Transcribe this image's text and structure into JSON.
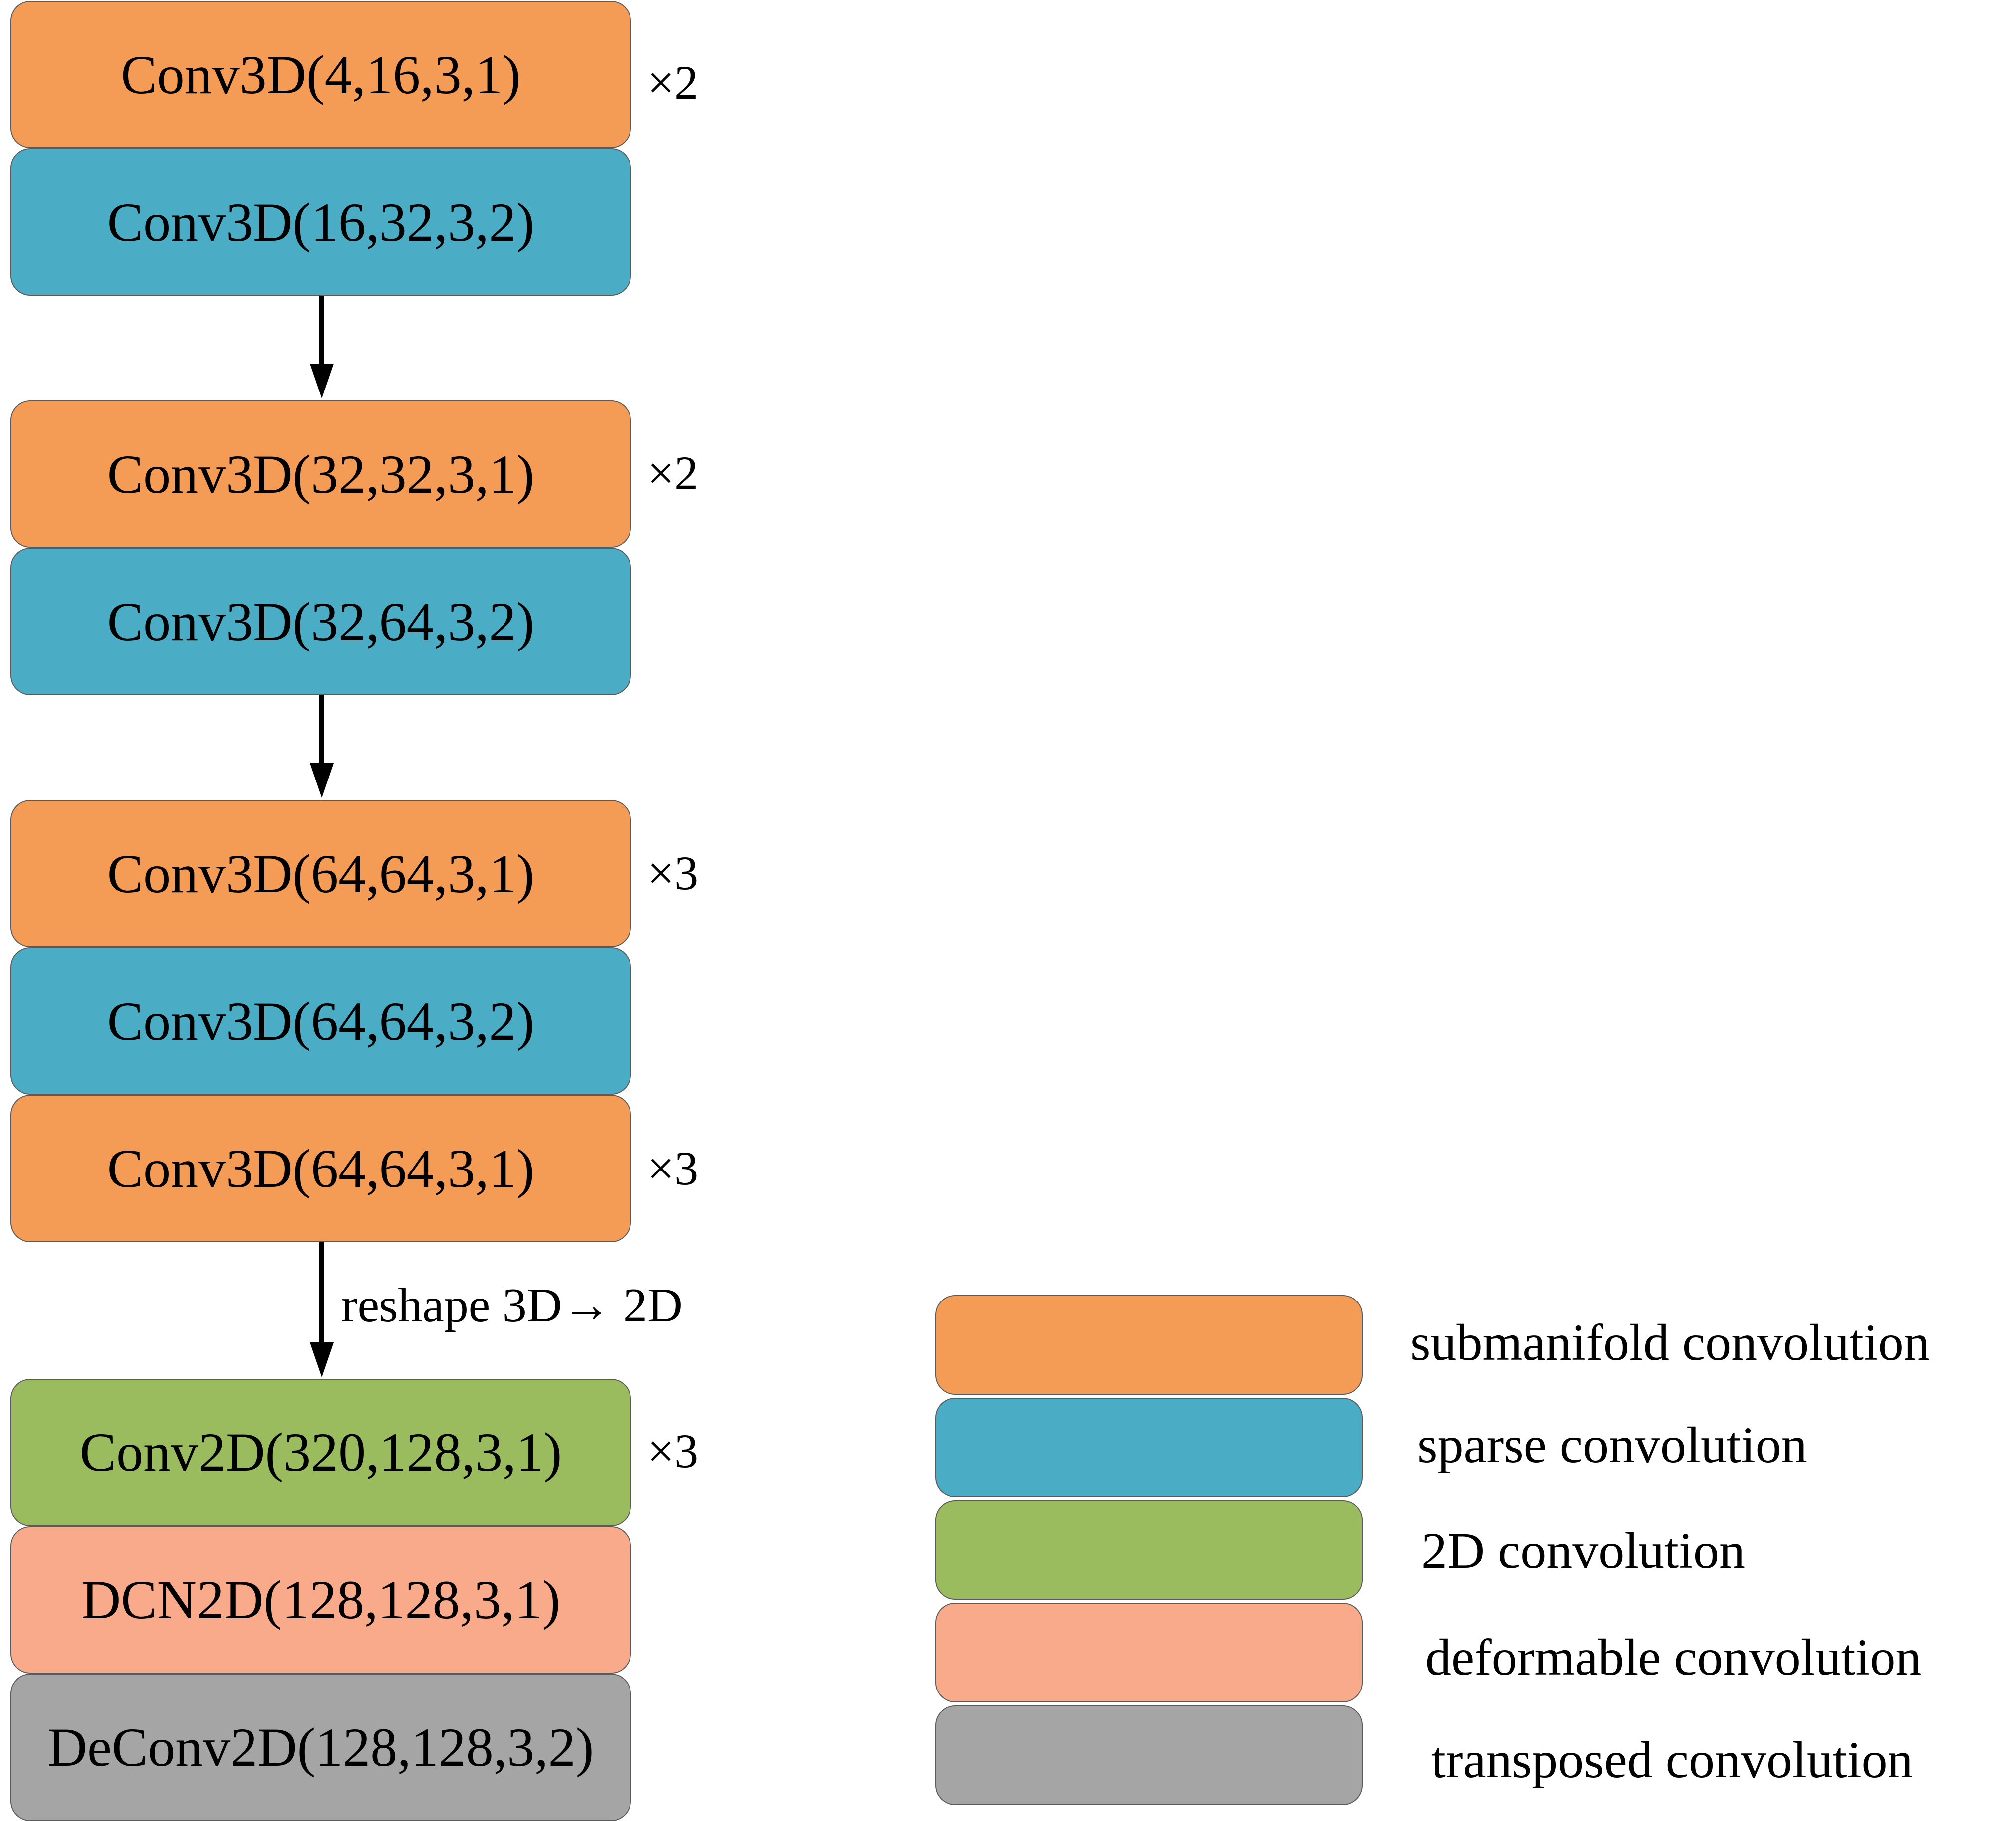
{
  "colors": {
    "submanifold": "#F49B56",
    "sparse": "#4BACC5",
    "conv2d": "#9BBB5F",
    "deformable": "#F8AA8A",
    "transposed": "#A5A5A5",
    "arrow": "#000000"
  },
  "blocks": [
    {
      "label": "Conv3D(4,16,3,1)",
      "kind": "submanifold"
    },
    {
      "label": "Conv3D(16,32,3,2)",
      "kind": "sparse"
    },
    {
      "label": "Conv3D(32,32,3,1)",
      "kind": "submanifold"
    },
    {
      "label": "Conv3D(32,64,3,2)",
      "kind": "sparse"
    },
    {
      "label": "Conv3D(64,64,3,1)",
      "kind": "submanifold"
    },
    {
      "label": "Conv3D(64,64,3,2)",
      "kind": "sparse"
    },
    {
      "label": "Conv3D(64,64,3,1)",
      "kind": "submanifold"
    },
    {
      "label": "Conv2D(320,128,3,1)",
      "kind": "conv2d"
    },
    {
      "label": "DCN2D(128,128,3,1)",
      "kind": "deformable"
    },
    {
      "label": "DeConv2D(128,128,3,2)",
      "kind": "transposed"
    }
  ],
  "multipliers": [
    "×2",
    "×2",
    "×3",
    "×3",
    "×3"
  ],
  "arrow_label": "reshape 3D→ 2D",
  "legend": [
    {
      "label": "submanifold convolution",
      "kind": "submanifold"
    },
    {
      "label": "sparse convolution",
      "kind": "sparse"
    },
    {
      "label": "2D convolution",
      "kind": "conv2d"
    },
    {
      "label": "deformable convolution",
      "kind": "deformable"
    },
    {
      "label": "transposed convolution",
      "kind": "transposed"
    }
  ]
}
